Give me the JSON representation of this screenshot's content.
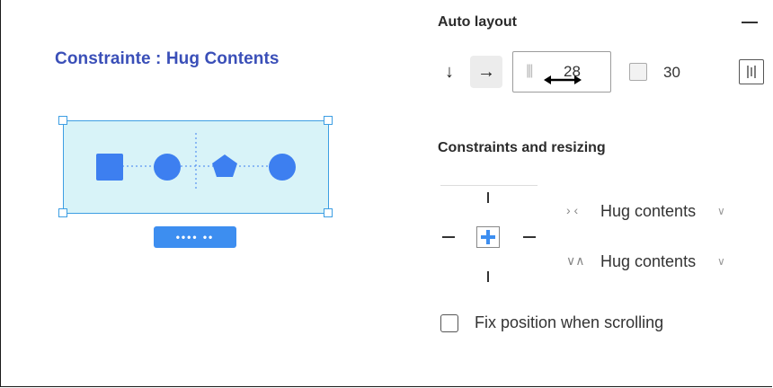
{
  "canvas": {
    "title": "Constrainte : Hug Contents",
    "size_tag": "•••• ••",
    "accent": "#3d9ee3",
    "fill": "#d8f3f8",
    "shape_color": "#3d7ff0",
    "shapes": [
      "square",
      "circle",
      "pentagon",
      "circle"
    ]
  },
  "panel": {
    "auto_layout": {
      "title": "Auto layout",
      "collapse_icon": "minus-icon",
      "direction_vertical_icon": "↓",
      "direction_horizontal_icon": "→",
      "spacing_value": "28",
      "padding_value": "30",
      "selected_direction": "horizontal"
    },
    "constraints": {
      "title": "Constraints and resizing",
      "horizontal_resizing": "Hug contents",
      "vertical_resizing": "Hug contents",
      "horizontal_icon": "› ‹",
      "vertical_icon": "∨∧",
      "chevron": "∨"
    },
    "fix_position": {
      "label": "Fix position when scrolling",
      "checked": false
    }
  }
}
